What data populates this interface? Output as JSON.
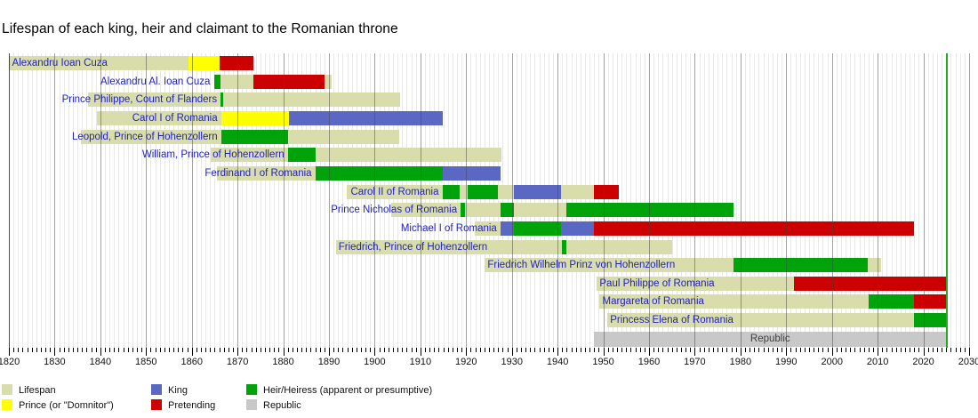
{
  "title": "Lifespan of each king, heir and claimant to the Romanian throne",
  "chart_data": {
    "type": "timeline",
    "title": "Lifespan of each king, heir and claimant to the Romanian throne",
    "x_axis": {
      "min": 1820,
      "max": 2030,
      "tick_interval_years": 10,
      "minor_tick_interval_years": 1,
      "tick_labels": [
        1820,
        1830,
        1840,
        1850,
        1860,
        1870,
        1880,
        1890,
        1900,
        1910,
        1920,
        1930,
        1940,
        1950,
        1960,
        1970,
        1980,
        1990,
        2000,
        2010,
        2020,
        2030
      ],
      "grid": true
    },
    "present_year": 2025.1,
    "colors": {
      "lifespan": "#d9dcab",
      "prince": "#ffff00",
      "king": "#5a68c4",
      "pretending": "#cc0000",
      "heir": "#00a40a",
      "republic": "#c8c8c8",
      "present_line": "#22aa22",
      "label_text": "#2222c2",
      "republic_text": "#404040",
      "grid_minor": "#e8e8e8",
      "grid_major": "rgba(70,70,70,0.5)",
      "grid_edge": "rgba(20,20,20,0.75)"
    },
    "legend": {
      "position": "bottom-left",
      "rows": [
        [
          {
            "key": "lifespan",
            "label": "Lifespan"
          },
          {
            "key": "king",
            "label": "King"
          },
          {
            "key": "heir",
            "label": "Heir/Heiress (apparent or presumptive)"
          }
        ],
        [
          {
            "key": "prince",
            "label": "Prince (or \"Domnitor\")"
          },
          {
            "key": "pretending",
            "label": "Pretending"
          },
          {
            "key": "republic",
            "label": "Republic"
          }
        ]
      ]
    },
    "rows": [
      {
        "label": "Alexandru Ioan Cuza",
        "label_align": "left",
        "label_anchor_year": 1820.3,
        "segments": [
          {
            "type": "lifespan",
            "from": 1820.0,
            "to": 1873.5
          },
          {
            "type": "prince",
            "from": 1859.2,
            "to": 1866.1
          },
          {
            "type": "pretending",
            "from": 1866.1,
            "to": 1873.5
          }
        ]
      },
      {
        "label": "Alexandru Al. Ioan Cuza",
        "label_align": "right",
        "label_anchor_year": 1864.6,
        "segments": [
          {
            "type": "lifespan",
            "from": 1864.9,
            "to": 1890.5
          },
          {
            "type": "heir",
            "from": 1864.9,
            "to": 1866.2
          },
          {
            "type": "pretending",
            "from": 1873.5,
            "to": 1889.0
          }
        ]
      },
      {
        "label": "Prince Philippe, Count of Flanders",
        "label_align": "right",
        "label_anchor_year": 1866.1,
        "segments": [
          {
            "type": "lifespan",
            "from": 1837.3,
            "to": 1905.6
          },
          {
            "type": "heir",
            "from": 1866.3,
            "to": 1866.9
          }
        ]
      },
      {
        "label": "Carol I of Romania",
        "label_align": "right",
        "label_anchor_year": 1866.2,
        "segments": [
          {
            "type": "lifespan",
            "from": 1839.3,
            "to": 1914.8
          },
          {
            "type": "prince",
            "from": 1866.4,
            "to": 1881.2
          },
          {
            "type": "king",
            "from": 1881.2,
            "to": 1914.8
          }
        ]
      },
      {
        "label": "Leopold, Prince of Hohenzollern",
        "label_align": "right",
        "label_anchor_year": 1866.2,
        "segments": [
          {
            "type": "lifespan",
            "from": 1835.7,
            "to": 1905.4
          },
          {
            "type": "heir",
            "from": 1866.4,
            "to": 1881.0
          }
        ]
      },
      {
        "label": "William, Prince of Hohenzollern",
        "label_align": "right",
        "label_anchor_year": 1880.8,
        "segments": [
          {
            "type": "lifespan",
            "from": 1864.2,
            "to": 1927.8
          },
          {
            "type": "heir",
            "from": 1881.0,
            "to": 1887.0
          }
        ]
      },
      {
        "label": "Ferdinand I of Romania",
        "label_align": "right",
        "label_anchor_year": 1886.8,
        "segments": [
          {
            "type": "lifespan",
            "from": 1865.5,
            "to": 1927.6
          },
          {
            "type": "heir",
            "from": 1887.0,
            "to": 1914.8
          },
          {
            "type": "king",
            "from": 1914.8,
            "to": 1927.6
          }
        ]
      },
      {
        "label": "Carol II of Romania",
        "label_align": "right",
        "label_anchor_year": 1914.6,
        "segments": [
          {
            "type": "lifespan",
            "from": 1893.8,
            "to": 1953.3
          },
          {
            "type": "heir",
            "from": 1914.8,
            "to": 1918.6
          },
          {
            "type": "heir",
            "from": 1920.3,
            "to": 1926.9
          },
          {
            "type": "king",
            "from": 1930.4,
            "to": 1940.7
          },
          {
            "type": "pretending",
            "from": 1948.0,
            "to": 1953.3
          }
        ]
      },
      {
        "label": "Prince Nicholas of Romania",
        "label_align": "right",
        "label_anchor_year": 1918.6,
        "segments": [
          {
            "type": "lifespan",
            "from": 1903.6,
            "to": 1978.4
          },
          {
            "type": "heir",
            "from": 1918.8,
            "to": 1919.8
          },
          {
            "type": "heir",
            "from": 1927.5,
            "to": 1930.4
          },
          {
            "type": "heir",
            "from": 1942.0,
            "to": 1978.4
          }
        ]
      },
      {
        "label": "Michael I of Romania",
        "label_align": "right",
        "label_anchor_year": 1927.3,
        "segments": [
          {
            "type": "lifespan",
            "from": 1921.8,
            "to": 2017.9
          },
          {
            "type": "king",
            "from": 1927.5,
            "to": 1930.4
          },
          {
            "type": "heir",
            "from": 1930.4,
            "to": 1940.7
          },
          {
            "type": "king",
            "from": 1940.7,
            "to": 1948.0
          },
          {
            "type": "pretending",
            "from": 1948.0,
            "to": 2017.9
          }
        ]
      },
      {
        "label": "Friedrich, Prince of Hohenzollern",
        "label_align": "left",
        "label_anchor_year": 1891.7,
        "segments": [
          {
            "type": "lifespan",
            "from": 1891.5,
            "to": 1965.1
          },
          {
            "type": "heir",
            "from": 1941.0,
            "to": 1942.0
          }
        ]
      },
      {
        "label": "Friedrich Wilhelm Prinz von Hohenzollern",
        "label_align": "left",
        "label_anchor_year": 1924.3,
        "segments": [
          {
            "type": "lifespan",
            "from": 1924.1,
            "to": 2010.7
          },
          {
            "type": "heir",
            "from": 1978.4,
            "to": 2007.8
          }
        ]
      },
      {
        "label": "Paul Philippe of Romania",
        "label_align": "left",
        "label_anchor_year": 1948.8,
        "segments": [
          {
            "type": "lifespan",
            "from": 1948.6,
            "to": 2025.1
          },
          {
            "type": "pretending",
            "from": 1991.6,
            "to": 2025.1
          }
        ]
      },
      {
        "label": "Margareta of Romania",
        "label_align": "left",
        "label_anchor_year": 1949.4,
        "segments": [
          {
            "type": "lifespan",
            "from": 1949.2,
            "to": 2025.1
          },
          {
            "type": "heir",
            "from": 2008.0,
            "to": 2017.9
          },
          {
            "type": "pretending",
            "from": 2017.9,
            "to": 2025.1
          }
        ]
      },
      {
        "label": "Princess Elena of Romania",
        "label_align": "left",
        "label_anchor_year": 1951.1,
        "segments": [
          {
            "type": "lifespan",
            "from": 1950.9,
            "to": 2025.1
          },
          {
            "type": "heir",
            "from": 2017.9,
            "to": 2025.1
          }
        ]
      },
      {
        "label": "Republic",
        "label_align": "center",
        "label_anchor_year": 1986.5,
        "is_republic_row": true,
        "segments": [
          {
            "type": "republic",
            "from": 1948.0,
            "to": 2025.1
          }
        ]
      }
    ]
  },
  "layout_note": "bars end at the green vertical line marking the present"
}
